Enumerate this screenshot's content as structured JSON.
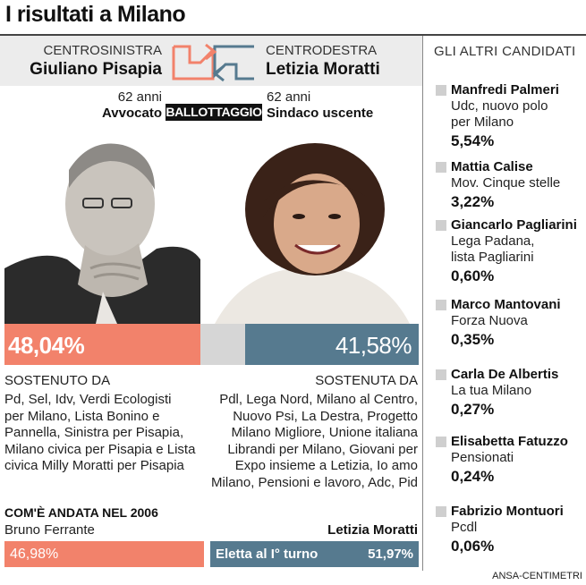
{
  "title": "I risultati a Milano",
  "header": {
    "left_coalition": "CENTROSINISTRA",
    "left_name": "Giuliano Pisapia",
    "right_coalition": "CENTRODESTRA",
    "right_name": "Letizia Moratti",
    "left_age": "62 anni",
    "left_role": "Avvocato",
    "ballot_label": "BALLOTTAGGIO",
    "right_age": "62 anni",
    "right_role": "Sindaco uscente"
  },
  "results": {
    "left_pct": "48,04%",
    "right_pct": "41,58%"
  },
  "support": {
    "left_heading": "SOSTENUTO DA",
    "left_lines": [
      "Pd, Sel, Idv, Verdi Ecologisti",
      "per Milano, Lista Bonino e",
      "Pannella, Sinistra per Pisapia,",
      "Milano civica per Pisapia e Lista",
      "civica Milly Moratti per Pisapia"
    ],
    "right_heading": "SOSTENUTA DA",
    "right_lines": [
      "Pdl, Lega Nord, Milano al Centro,",
      "Nuovo Psi, La Destra, Progetto",
      "Milano Migliore, Unione italiana",
      "Librandi per Milano, Giovani per",
      "Expo insieme a Letizia, Io amo",
      "Milano, Pensioni e lavoro, Adc, Pid"
    ]
  },
  "history": {
    "heading": "COM'È ANDATA NEL 2006",
    "left_name": "Bruno Ferrante",
    "left_pct": "46,98%",
    "right_name": "Letizia Moratti",
    "right_label": "Eletta al I° turno",
    "right_pct": "51,97%"
  },
  "others": {
    "heading": "GLI ALTRI CANDIDATI",
    "candidates": [
      {
        "name": "Manfredi Palmeri",
        "lines": [
          "Udc, nuovo polo",
          "per Milano"
        ],
        "pct": "5,54%"
      },
      {
        "name": "Mattia Calise",
        "lines": [
          "Mov. Cinque stelle"
        ],
        "pct": "3,22%"
      },
      {
        "name": "Giancarlo Pagliarini",
        "lines": [
          "Lega Padana,",
          "lista Pagliarini"
        ],
        "pct": "0,60%"
      },
      {
        "name": "Marco Mantovani",
        "lines": [
          "Forza Nuova"
        ],
        "pct": "0,35%"
      },
      {
        "name": "Carla De Albertis",
        "lines": [
          "La tua Milano"
        ],
        "pct": "0,27%"
      },
      {
        "name": "Elisabetta Fatuzzo",
        "lines": [
          "Pensionati"
        ],
        "pct": "0,24%"
      },
      {
        "name": "Fabrizio Montuori",
        "lines": [
          "Pcdl"
        ],
        "pct": "0,06%"
      }
    ]
  },
  "credit": "ANSA-CENTIMETRI",
  "colors": {
    "left_accent": "#f2826b",
    "right_accent": "#567a8f",
    "neutral": "#d6d6d6"
  },
  "icons": [
    "arrows-logo-icon",
    "pisapia-photo",
    "moratti-photo"
  ]
}
